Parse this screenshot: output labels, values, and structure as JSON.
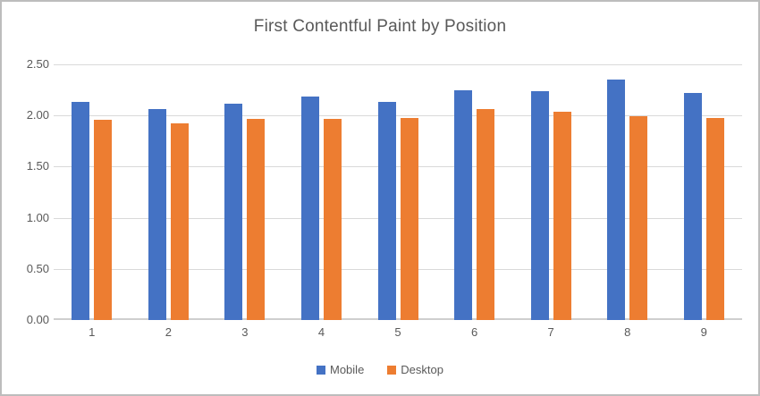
{
  "chart_data": {
    "type": "bar",
    "title": "First Contentful Paint by Position",
    "categories": [
      "1",
      "2",
      "3",
      "4",
      "5",
      "6",
      "7",
      "8",
      "9"
    ],
    "series": [
      {
        "name": "Mobile",
        "color": "#4472C4",
        "values": [
          2.13,
          2.06,
          2.12,
          2.19,
          2.13,
          2.25,
          2.24,
          2.35,
          2.22
        ]
      },
      {
        "name": "Desktop",
        "color": "#ED7D31",
        "values": [
          1.96,
          1.92,
          1.97,
          1.97,
          1.98,
          2.06,
          2.04,
          1.99,
          1.98
        ]
      }
    ],
    "xlabel": "",
    "ylabel": "",
    "ylim": [
      0,
      2.5
    ],
    "ytick_step": 0.5,
    "ytick_labels": [
      "0.00",
      "0.50",
      "1.00",
      "1.50",
      "2.00",
      "2.50"
    ],
    "grid": true,
    "legend_position": "bottom"
  },
  "colors": {
    "text": "#595959",
    "gridline": "#D9D9D9",
    "axis_line": "#CFCFCF",
    "background": "#FFFFFF",
    "frame_border": "#BDBDBD"
  }
}
